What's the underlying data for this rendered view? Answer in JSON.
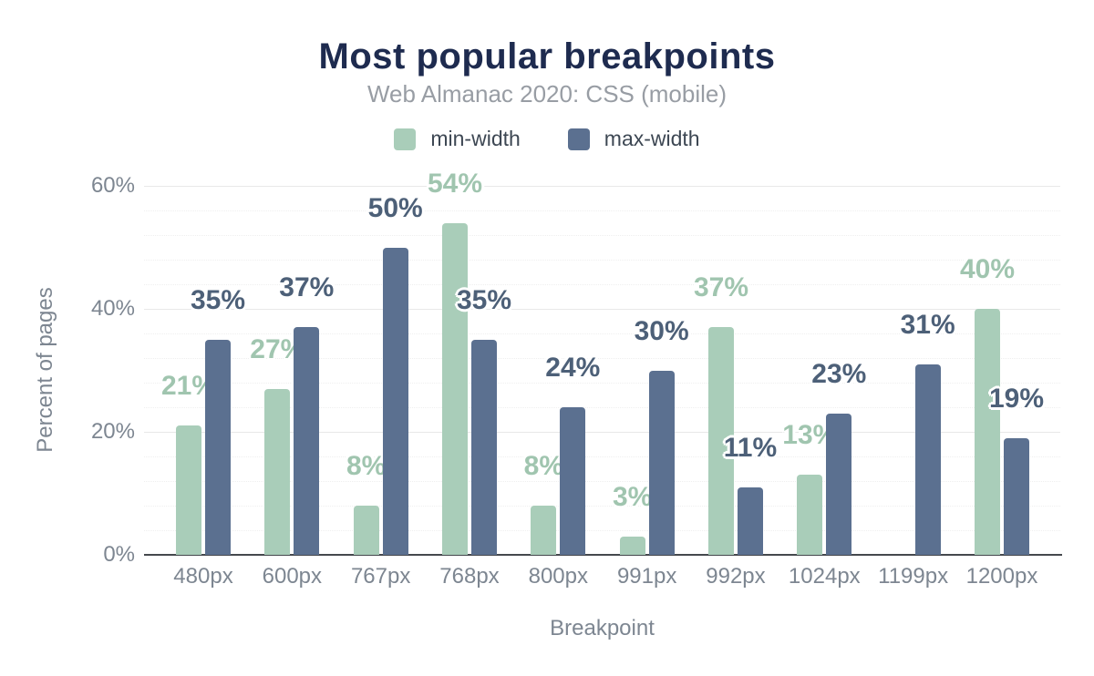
{
  "chart": {
    "title": "Most popular breakpoints",
    "subtitle": "Web Almanac 2020: CSS (mobile)",
    "xlabel": "Breakpoint",
    "ylabel": "Percent of pages"
  },
  "chart_data": {
    "type": "bar",
    "title": "Most popular breakpoints",
    "subtitle": "Web Almanac 2020: CSS (mobile)",
    "xlabel": "Breakpoint",
    "ylabel": "Percent of pages",
    "categories": [
      "480px",
      "600px",
      "767px",
      "768px",
      "800px",
      "991px",
      "992px",
      "1024px",
      "1199px",
      "1200px"
    ],
    "series": [
      {
        "name": "min-width",
        "color": "#a9cdb9",
        "label_color": "#a0c5af",
        "values": [
          21,
          27,
          8,
          54,
          8,
          3,
          37,
          13,
          null,
          40
        ],
        "labels": [
          "21%",
          "27%",
          "8%",
          "54%",
          "8%",
          "3%",
          "37%",
          "13%",
          null,
          "40%"
        ]
      },
      {
        "name": "max-width",
        "color": "#5b7090",
        "label_color": "#4d6078",
        "values": [
          35,
          37,
          50,
          35,
          24,
          30,
          11,
          23,
          31,
          19
        ],
        "labels": [
          "35%",
          "37%",
          "50%",
          "35%",
          "24%",
          "30%",
          "11%",
          "23%",
          "31%",
          "19%"
        ]
      }
    ],
    "y_ticks": [
      {
        "label": "0%",
        "value": 0
      },
      {
        "label": "20%",
        "value": 20
      },
      {
        "label": "40%",
        "value": 40
      },
      {
        "label": "60%",
        "value": 60
      }
    ],
    "ylim": [
      0,
      60
    ],
    "grid": {
      "major_every": 20,
      "minor_every": 4,
      "grid_on": true
    },
    "legend_position": "top"
  }
}
